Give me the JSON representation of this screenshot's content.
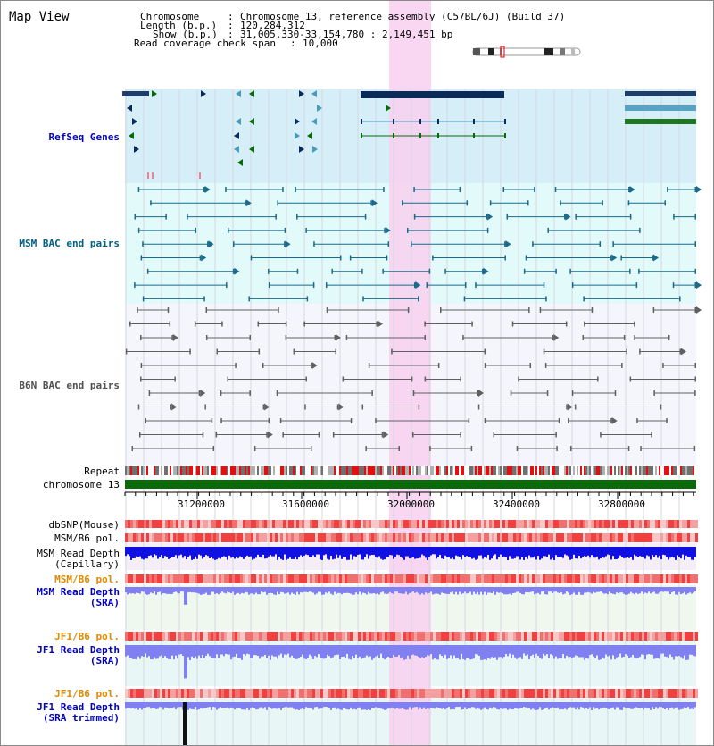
{
  "header": {
    "title": "Map View",
    "chromosome_key": "Chromosome",
    "chromosome_val": "Chromosome 13, reference assembly (C57BL/6J) (Build 37)",
    "length_key": "Length (b.p.)",
    "length_val": "120,284,312",
    "show_key": "Show (b.p.)",
    "show_val": "31,005,330-33,154,780 : 2,149,451 bp",
    "coverage_key": "Read coverage check span",
    "coverage_val": "10,000"
  },
  "tracks": {
    "refseq": "RefSeq Genes",
    "msm_bac": "MSM BAC end pairs",
    "b6n_bac": "B6N BAC end pairs",
    "repeat": "Repeat",
    "chromosome": "chromosome 13",
    "dbsnp": "dbSNP(Mouse)",
    "msm_pol_cap": "MSM/B6 pol.",
    "msm_depth_cap_1": "MSM Read Depth",
    "msm_depth_cap_2": "(Capillary)",
    "msm_pol_sra": "MSM/B6 pol.",
    "msm_depth_sra_1": "MSM Read Depth",
    "msm_depth_sra_2": "(SRA)",
    "jf1_pol": "JF1/B6 pol.",
    "jf1_depth_1": "JF1 Read Depth",
    "jf1_depth_2": "(SRA)",
    "jf1_pol_tr": "JF1/B6 pol.",
    "jf1_depth_tr_1": "JF1 Read Depth",
    "jf1_depth_tr_2": "(SRA trimmed)"
  },
  "axis": {
    "ticks": [
      "31200000",
      "31600000",
      "32000000",
      "32400000",
      "32800000"
    ]
  },
  "colors": {
    "highlight": "#f8d0f0",
    "refseq_bg": "#d6eef8",
    "msm_bg": "#e2fafa",
    "gene_dark": "#0a2a5a",
    "gene_teal": "#4a9abc",
    "gene_green": "#0a6a0a",
    "bac_teal": "#1a6a8a",
    "bac_gray": "#606060",
    "chromosome_bar": "#0a6a0a",
    "depth_dark": "#1010e0",
    "depth_light": "#8080f0",
    "label_blue": "#0000c0",
    "label_orange": "#e08800",
    "label_teal": "#006080"
  }
}
